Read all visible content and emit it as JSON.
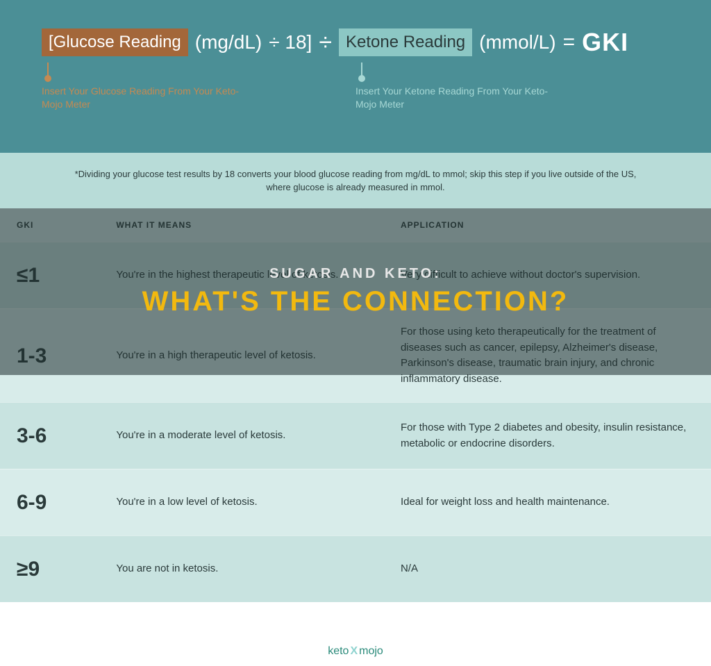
{
  "colors": {
    "band_top": "#4b8f96",
    "band_note": "#b8dcd8",
    "text_dark": "#2a3a3a",
    "text_white": "#ffffff",
    "chip_glucose_bg": "#a3673a",
    "chip_glucose_callout": "#c58a52",
    "chip_ketone_bg": "#8cc7c4",
    "chip_ketone_callout": "#a7d8d5",
    "row_alt_a": "#c8e3e0",
    "row_alt_b": "#d8ecea",
    "overlay_bg": "rgba(30,45,45,0.55)",
    "overlay_line1": "#e8e8e8",
    "overlay_line2": "#f2b90f"
  },
  "formula": {
    "glucose_chip": "[Glucose Reading",
    "glucose_unit": "(mg/dL)",
    "divide_18": "÷ 18]",
    "big_divide": "÷",
    "ketone_chip": "Ketone Reading",
    "ketone_unit": "(mmol/L)",
    "equals": "=",
    "result": "GKI",
    "glucose_callout": "Insert Your Glucose Reading From Your Keto-Mojo Meter",
    "ketone_callout": "Insert Your Ketone Reading From Your Keto-Mojo Meter"
  },
  "note": "*Dividing your glucose test results by 18 converts your blood glucose reading from mg/dL to mmol; skip this step if you live outside of the US, where glucose is already measured in mmol.",
  "table": {
    "columns": [
      "GKI",
      "WHAT IT MEANS",
      "APPLICATION"
    ],
    "col_widths_pct": [
      14,
      40,
      46
    ],
    "header_bg": "#d8ecea",
    "header_text_color": "#2a3a3a",
    "rows": [
      {
        "gki": "≤1",
        "meaning": "You're in the highest therapeutic level of ketosis.",
        "application": "Very difficult to achieve without doctor's supervision.",
        "bg": "#c8e3e0"
      },
      {
        "gki": "1-3",
        "meaning": "You're in a high therapeutic level of ketosis.",
        "application": "For those using keto therapeutically for the treatment of diseases such as cancer, epilepsy, Alzheimer's disease, Parkinson's disease, traumatic brain injury, and chronic inflammatory disease.",
        "bg": "#d8ecea"
      },
      {
        "gki": "3-6",
        "meaning": "You're in a moderate level of ketosis.",
        "application": "For those with Type 2 diabetes and obesity, insulin resistance, metabolic or endocrine disorders.",
        "bg": "#c8e3e0"
      },
      {
        "gki": "6-9",
        "meaning": "You're in a low level of ketosis.",
        "application": "Ideal for weight loss and health maintenance.",
        "bg": "#d8ecea"
      },
      {
        "gki": "≥9",
        "meaning": "You are not in ketosis.",
        "application": "N/A",
        "bg": "#c8e3e0"
      }
    ],
    "gki_fontsize": 30,
    "cell_fontsize": 15,
    "row_min_height": 96
  },
  "overlay": {
    "line1": "SUGAR AND KETO:",
    "line2": "WHAT'S THE CONNECTION?"
  },
  "footer": {
    "part1": "keto",
    "x": "X",
    "part2": "mojo"
  }
}
